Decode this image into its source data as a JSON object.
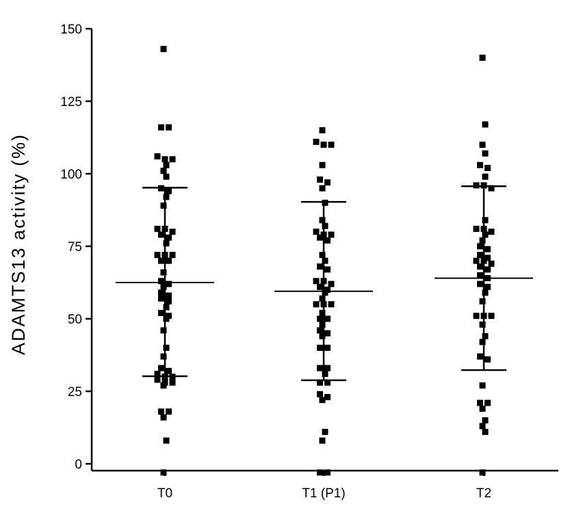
{
  "chart_data": {
    "type": "scatter",
    "subtype": "dot-plot-with-mean-and-sd",
    "title": "",
    "xlabel": "",
    "ylabel": "ADAMTS13 activity (%)",
    "ylim": [
      -3,
      150
    ],
    "yticks": [
      0,
      25,
      50,
      75,
      100,
      125,
      150
    ],
    "categories": [
      "T0",
      "T1 (P1)",
      "T2"
    ],
    "grid": false,
    "marker_color": "#000000",
    "series": [
      {
        "category": "T0",
        "mean": 62.5,
        "sd_upper": 95.2,
        "sd_lower": 30.2,
        "values": [
          143,
          116,
          116,
          106,
          105,
          105,
          103,
          101,
          99,
          95,
          94,
          92,
          89,
          81,
          81,
          80,
          79,
          78,
          76,
          72,
          72,
          72,
          70,
          70,
          66,
          63,
          62,
          61,
          59,
          58,
          57,
          56,
          54,
          52,
          51,
          50,
          46,
          40,
          37,
          33,
          32,
          31,
          30,
          30,
          29,
          28,
          28,
          27,
          18,
          18,
          16,
          8,
          -3
        ]
      },
      {
        "category": "T1 (P1)",
        "mean": 59.5,
        "sd_upper": 90.3,
        "sd_lower": 28.8,
        "values": [
          115,
          111,
          110,
          110,
          103,
          98,
          97,
          95,
          90,
          84,
          82,
          80,
          79,
          79,
          78,
          77,
          72,
          70,
          68,
          67,
          63,
          63,
          62,
          61,
          60,
          59,
          57,
          55,
          55,
          55,
          52,
          50,
          50,
          48,
          46,
          45,
          44,
          40,
          40,
          33,
          33,
          31,
          28,
          28,
          24,
          23,
          22,
          11,
          8,
          -3,
          -3
        ]
      },
      {
        "category": "T2",
        "mean": 64.0,
        "sd_upper": 95.7,
        "sd_lower": 32.3,
        "values": [
          140,
          117,
          110,
          107,
          103,
          102,
          99,
          96,
          96,
          95,
          84,
          81,
          81,
          80,
          79,
          77,
          75,
          74,
          72,
          71,
          70,
          70,
          69,
          68,
          67,
          65,
          64,
          62,
          61,
          59,
          56,
          51,
          51,
          51,
          48,
          44,
          42,
          37,
          36,
          27,
          21,
          21,
          19,
          15,
          13,
          11,
          -3
        ]
      }
    ]
  }
}
